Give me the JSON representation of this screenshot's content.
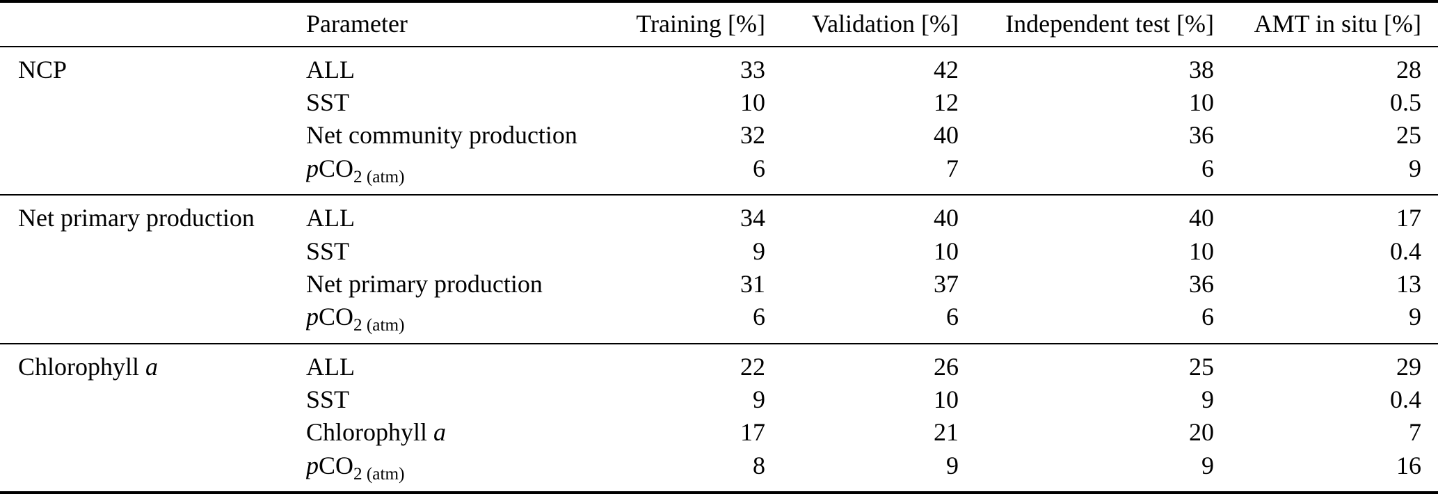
{
  "table": {
    "columns": [
      "",
      "Parameter",
      "Training [%]",
      "Validation [%]",
      "Independent test [%]",
      "AMT in situ [%]"
    ],
    "groups": [
      {
        "label": {
          "main": "NCP",
          "italic": ""
        },
        "rows": [
          {
            "param": {
              "italic_pre": "",
              "main": "ALL",
              "sub": "",
              "italic_end": ""
            },
            "values": [
              "33",
              "42",
              "38",
              "28"
            ]
          },
          {
            "param": {
              "italic_pre": "",
              "main": "SST",
              "sub": "",
              "italic_end": ""
            },
            "values": [
              "10",
              "12",
              "10",
              "0.5"
            ]
          },
          {
            "param": {
              "italic_pre": "",
              "main": "Net community production",
              "sub": "",
              "italic_end": ""
            },
            "values": [
              "32",
              "40",
              "36",
              "25"
            ]
          },
          {
            "param": {
              "italic_pre": "p",
              "main": "CO",
              "sub": "2 (atm)",
              "italic_end": ""
            },
            "values": [
              "6",
              "7",
              "6",
              "9"
            ]
          }
        ]
      },
      {
        "label": {
          "main": "Net primary production",
          "italic": ""
        },
        "rows": [
          {
            "param": {
              "italic_pre": "",
              "main": "ALL",
              "sub": "",
              "italic_end": ""
            },
            "values": [
              "34",
              "40",
              "40",
              "17"
            ]
          },
          {
            "param": {
              "italic_pre": "",
              "main": "SST",
              "sub": "",
              "italic_end": ""
            },
            "values": [
              "9",
              "10",
              "10",
              "0.4"
            ]
          },
          {
            "param": {
              "italic_pre": "",
              "main": "Net primary production",
              "sub": "",
              "italic_end": ""
            },
            "values": [
              "31",
              "37",
              "36",
              "13"
            ]
          },
          {
            "param": {
              "italic_pre": "p",
              "main": "CO",
              "sub": "2 (atm)",
              "italic_end": ""
            },
            "values": [
              "6",
              "6",
              "6",
              "9"
            ]
          }
        ]
      },
      {
        "label": {
          "main": "Chlorophyll ",
          "italic": "a"
        },
        "rows": [
          {
            "param": {
              "italic_pre": "",
              "main": "ALL",
              "sub": "",
              "italic_end": ""
            },
            "values": [
              "22",
              "26",
              "25",
              "29"
            ]
          },
          {
            "param": {
              "italic_pre": "",
              "main": "SST",
              "sub": "",
              "italic_end": ""
            },
            "values": [
              "9",
              "10",
              "9",
              "0.4"
            ]
          },
          {
            "param": {
              "italic_pre": "",
              "main": "Chlorophyll ",
              "sub": "",
              "italic_end": "a"
            },
            "values": [
              "17",
              "21",
              "20",
              "7"
            ]
          },
          {
            "param": {
              "italic_pre": "p",
              "main": "CO",
              "sub": "2 (atm)",
              "italic_end": ""
            },
            "values": [
              "8",
              "9",
              "9",
              "16"
            ]
          }
        ]
      }
    ]
  }
}
